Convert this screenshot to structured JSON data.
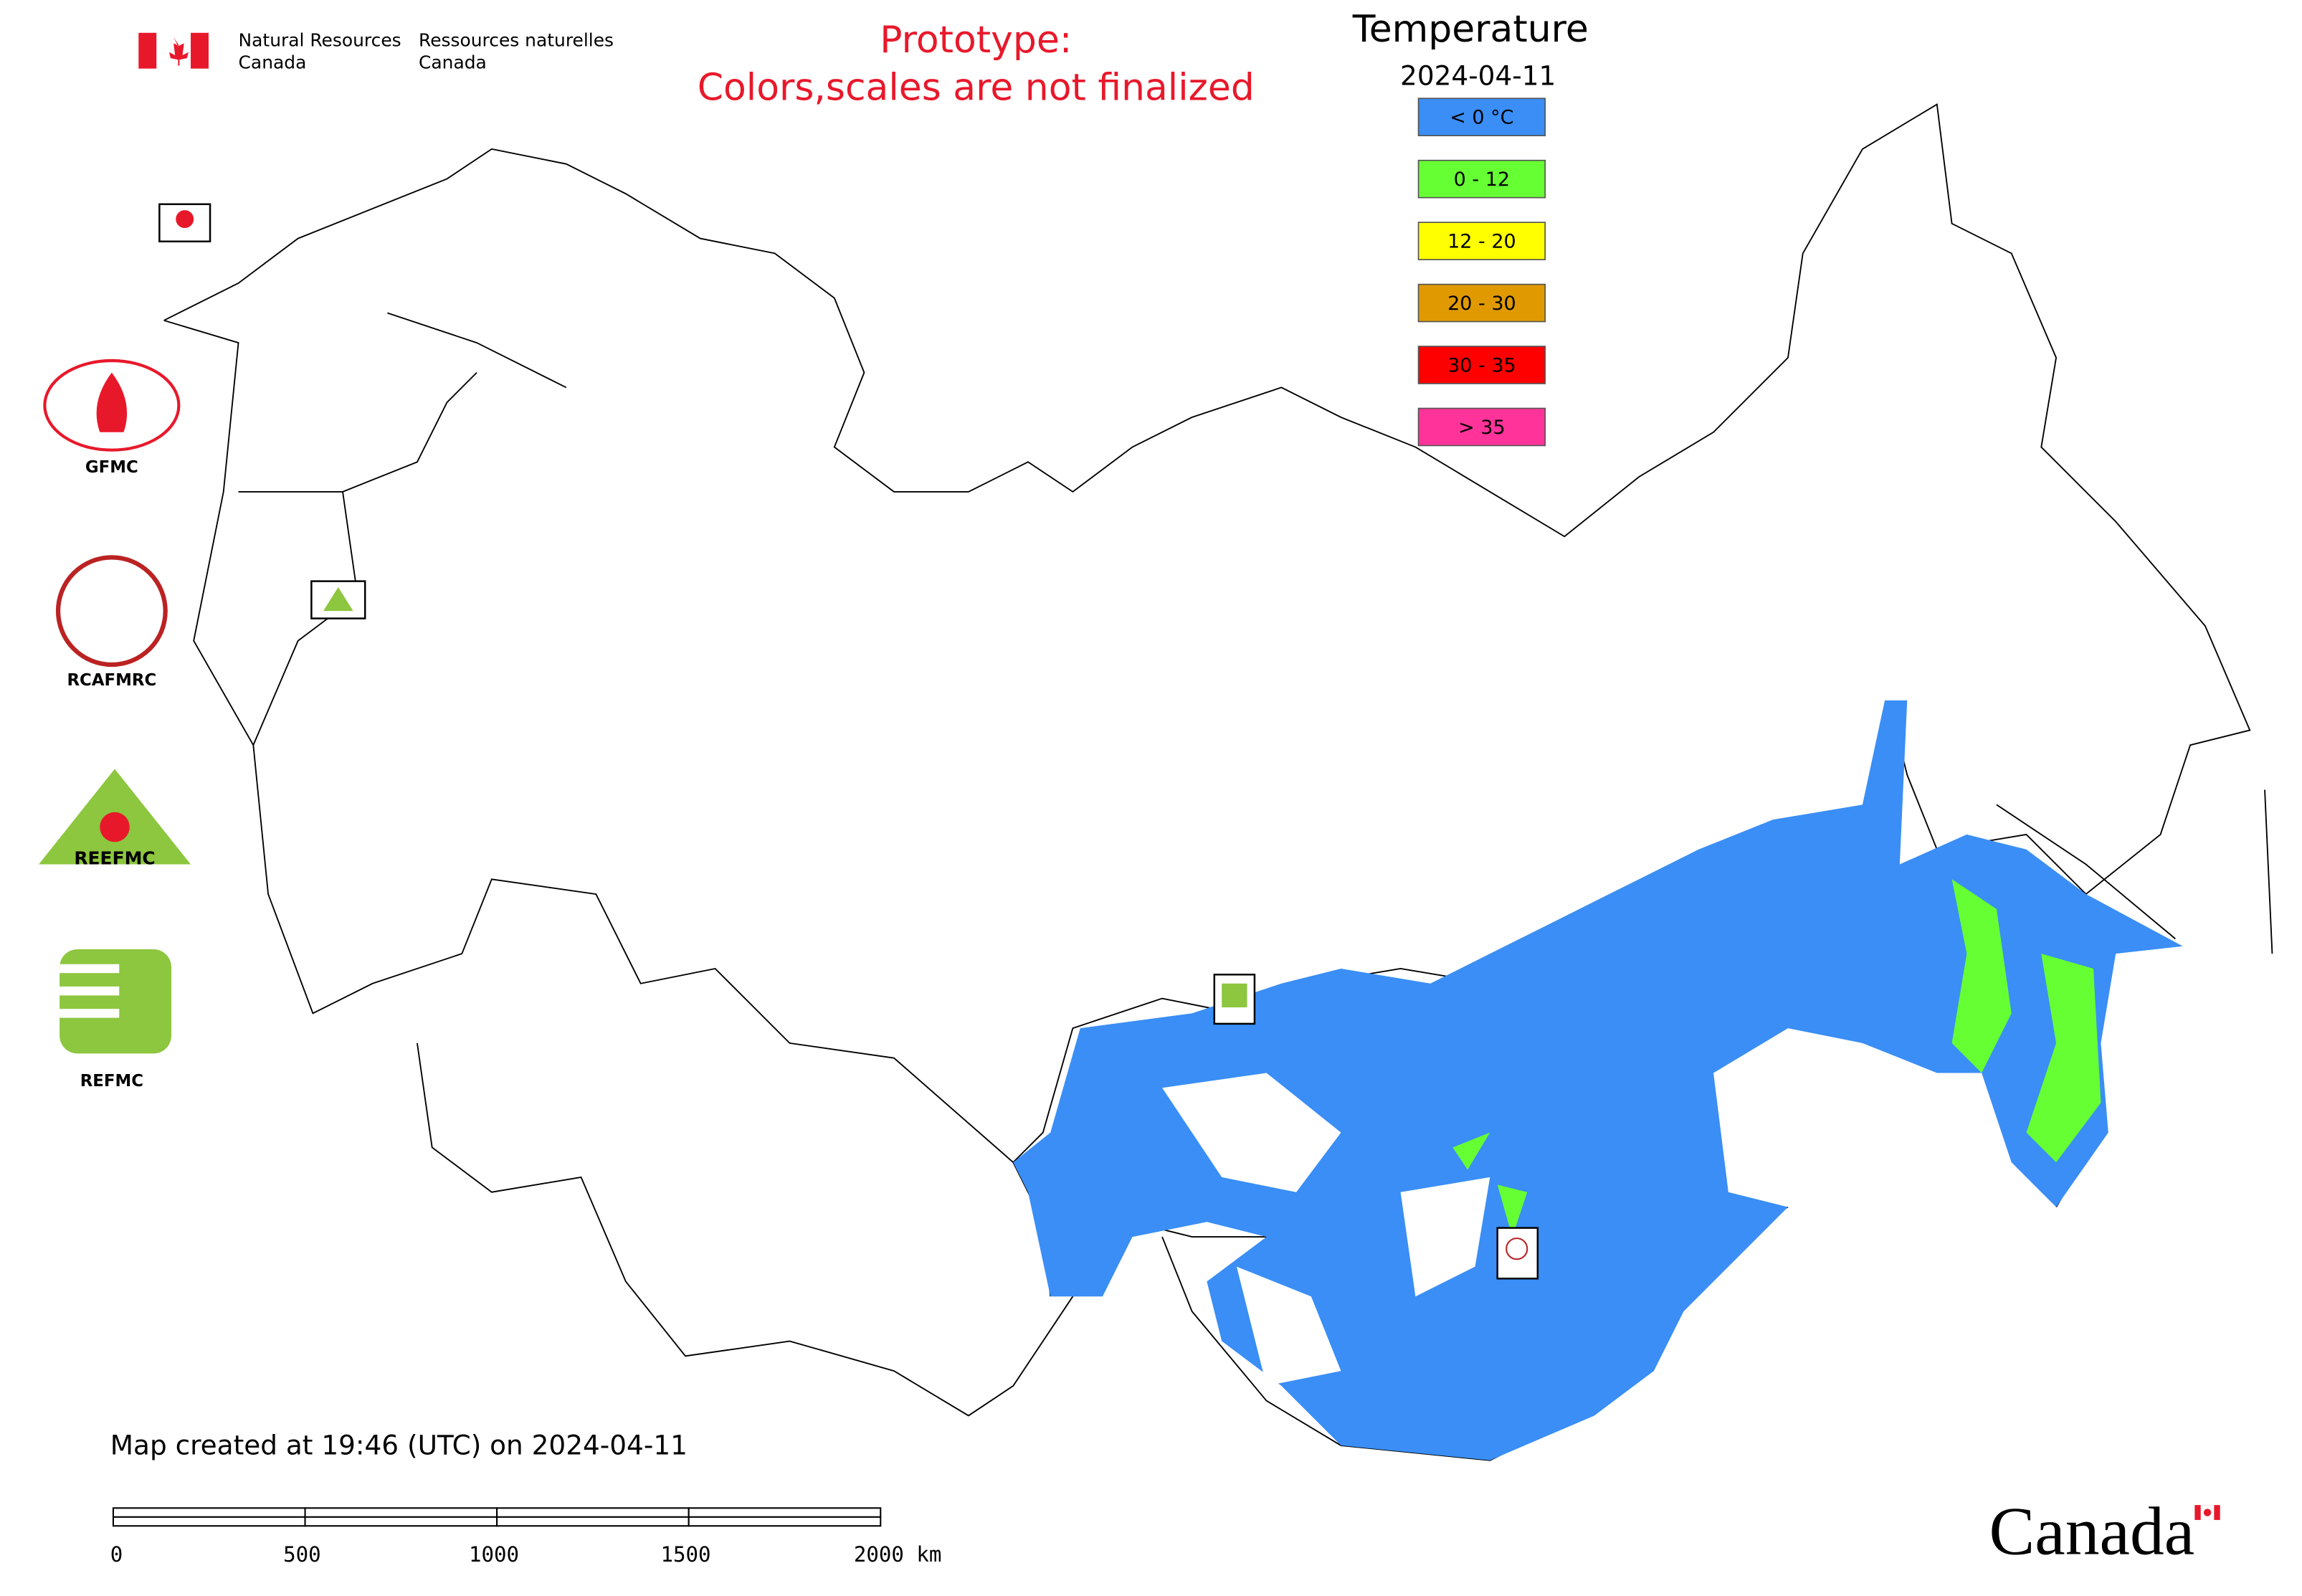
{
  "header": {
    "agency_en": [
      "Natural Resources",
      "Canada"
    ],
    "agency_fr": [
      "Ressources naturelles",
      "Canada"
    ],
    "notice": [
      "Prototype:",
      "Colors,scales are not finalized"
    ]
  },
  "legend": {
    "title": "Temperature",
    "date": "2024-04-11",
    "items": [
      {
        "label": "< 0 °C",
        "color": "#3a8ef5"
      },
      {
        "label": "0 - 12",
        "color": "#66ff33"
      },
      {
        "label": "12 - 20",
        "color": "#ffff00"
      },
      {
        "label": "20 - 30",
        "color": "#e09a00"
      },
      {
        "label": "30 - 35",
        "color": "#ff0000"
      },
      {
        "label": "> 35",
        "color": "#ff3399"
      }
    ]
  },
  "logos": [
    "GFMC",
    "RCAFMRC",
    "REEFMC",
    "REFMC"
  ],
  "footer": {
    "caption": "Map created at 19:46 (UTC) on 2024-04-11",
    "scale_labels": [
      "0",
      "500",
      "1000",
      "1500",
      "2000 km"
    ],
    "wordmark": "Canada"
  }
}
